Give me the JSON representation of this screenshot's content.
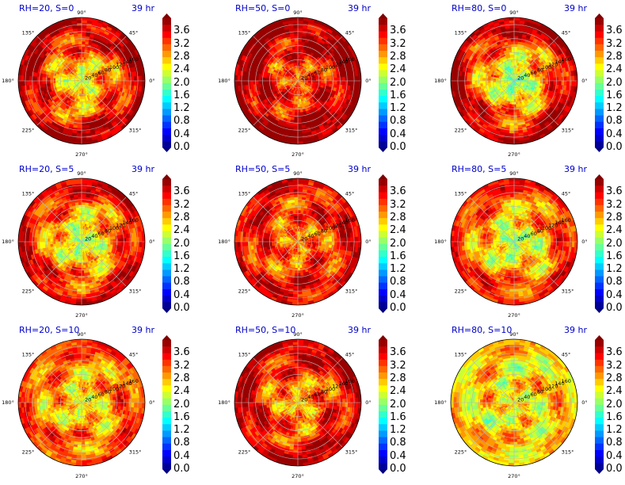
{
  "chart_data": {
    "type": "heatmap",
    "projection": "polar",
    "angle_ticks": [
      "0°",
      "45°",
      "90°",
      "135°",
      "180°",
      "225°",
      "270°",
      "315°"
    ],
    "radial_ticks": [
      20,
      40,
      60,
      80,
      100,
      120,
      140,
      160
    ],
    "colorbar": {
      "colormap": "jet",
      "ticks": [
        "0.0",
        "0.4",
        "0.8",
        "1.2",
        "1.6",
        "2.0",
        "2.4",
        "2.8",
        "3.2",
        "3.6"
      ],
      "range": [
        0.0,
        4.0
      ],
      "extend": "both"
    },
    "panels": [
      {
        "title": "RH=20, S=0",
        "time": "39 hr",
        "center_value": 2.2,
        "outer_value": 3.9
      },
      {
        "title": "RH=50, S=0",
        "time": "39 hr",
        "center_value": 3.0,
        "outer_value": 4.0
      },
      {
        "title": "RH=80, S=0",
        "time": "39 hr",
        "center_value": 1.8,
        "outer_value": 3.9
      },
      {
        "title": "RH=20, S=5",
        "time": "39 hr",
        "center_value": 2.0,
        "outer_value": 3.7
      },
      {
        "title": "RH=50, S=5",
        "time": "39 hr",
        "center_value": 2.9,
        "outer_value": 3.6
      },
      {
        "title": "RH=80, S=5",
        "time": "39 hr",
        "center_value": 2.0,
        "outer_value": 3.5
      },
      {
        "title": "RH=20, S=10",
        "time": "39 hr",
        "center_value": 2.4,
        "outer_value": 3.3
      },
      {
        "title": "RH=50, S=10",
        "time": "39 hr",
        "center_value": 2.6,
        "outer_value": 3.8
      },
      {
        "title": "RH=80, S=10",
        "time": "39 hr",
        "center_value": 2.5,
        "outer_value": 2.7
      }
    ]
  }
}
